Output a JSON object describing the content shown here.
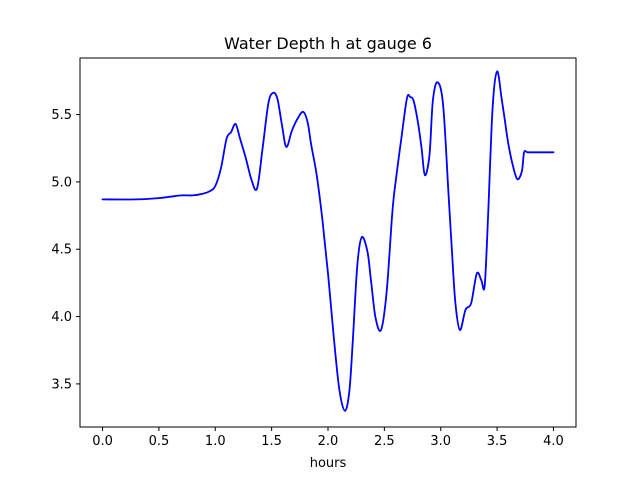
{
  "chart_data": {
    "type": "line",
    "title": "Water Depth h at gauge 6",
    "xlabel": "hours",
    "ylabel": "",
    "xlim": [
      -0.2,
      4.2
    ],
    "ylim": [
      3.18,
      5.92
    ],
    "xticks": [
      "0.0",
      "0.5",
      "1.0",
      "1.5",
      "2.0",
      "2.5",
      "3.0",
      "3.5",
      "4.0"
    ],
    "yticks": [
      "3.5",
      "4.0",
      "4.5",
      "5.0",
      "5.5"
    ],
    "grid": false,
    "series": [
      {
        "color": "#0000ff",
        "x": [
          0.0,
          0.3,
          0.5,
          0.6,
          0.7,
          0.8,
          0.88,
          0.95,
          1.0,
          1.05,
          1.1,
          1.14,
          1.18,
          1.22,
          1.27,
          1.32,
          1.37,
          1.42,
          1.47,
          1.51,
          1.55,
          1.59,
          1.63,
          1.68,
          1.73,
          1.78,
          1.82,
          1.85,
          1.9,
          1.95,
          2.0,
          2.05,
          2.1,
          2.15,
          2.19,
          2.22,
          2.26,
          2.3,
          2.35,
          2.38,
          2.42,
          2.47,
          2.52,
          2.57,
          2.6,
          2.65,
          2.7,
          2.73,
          2.76,
          2.8,
          2.83,
          2.86,
          2.9,
          2.93,
          2.97,
          3.02,
          3.07,
          3.1,
          3.13,
          3.17,
          3.22,
          3.27,
          3.32,
          3.36,
          3.39,
          3.42,
          3.46,
          3.5,
          3.54,
          3.57,
          3.6,
          3.64,
          3.68,
          3.72,
          3.74,
          3.77,
          3.82,
          3.87,
          3.92,
          3.95,
          3.98,
          4.0
        ],
        "y": [
          4.87,
          4.87,
          4.88,
          4.89,
          4.9,
          4.9,
          4.91,
          4.93,
          4.97,
          5.1,
          5.32,
          5.37,
          5.43,
          5.32,
          5.18,
          5.02,
          4.95,
          5.25,
          5.58,
          5.66,
          5.62,
          5.43,
          5.26,
          5.38,
          5.47,
          5.52,
          5.44,
          5.28,
          5.05,
          4.72,
          4.32,
          3.86,
          3.46,
          3.3,
          3.45,
          3.82,
          4.38,
          4.59,
          4.48,
          4.28,
          4.0,
          3.9,
          4.18,
          4.77,
          5.0,
          5.32,
          5.62,
          5.63,
          5.6,
          5.43,
          5.25,
          5.05,
          5.2,
          5.6,
          5.74,
          5.58,
          4.9,
          4.48,
          4.1,
          3.9,
          4.05,
          4.1,
          4.32,
          4.27,
          4.23,
          4.75,
          5.55,
          5.82,
          5.62,
          5.45,
          5.28,
          5.12,
          5.02,
          5.08,
          5.22,
          5.22,
          5.22,
          5.22,
          5.22,
          5.22,
          5.22,
          5.22
        ]
      }
    ]
  }
}
